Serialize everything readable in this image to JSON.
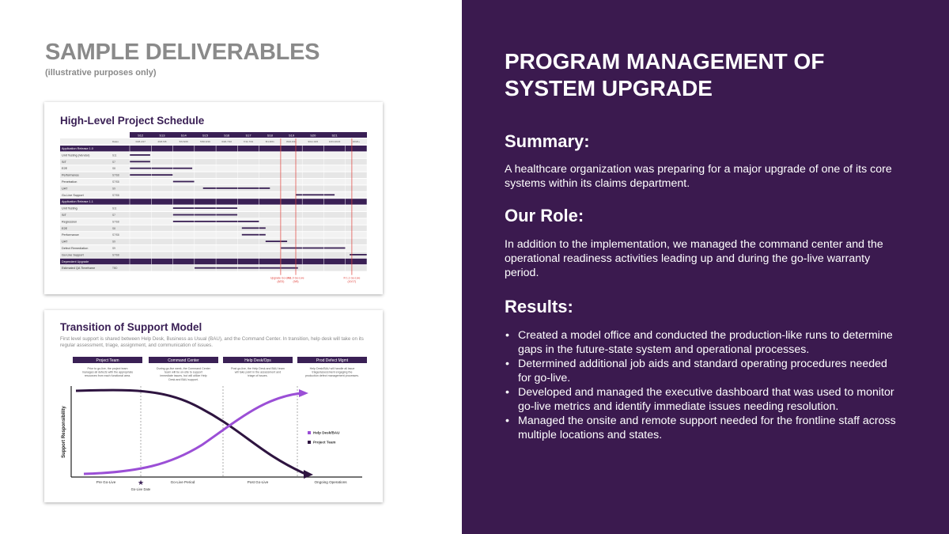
{
  "left": {
    "title": "SAMPLE DELIVERABLES",
    "subtitle": "(illustrative purposes only)",
    "schedule": {
      "title": "High-Level Project Schedule",
      "sprints": [
        "S12",
        "S13",
        "S14",
        "S15",
        "S16",
        "S17",
        "S18",
        "S19",
        "S20",
        "S21",
        ""
      ],
      "dates": [
        "Dates",
        "3/28-4/17",
        "4/18-5/8",
        "5/9-5/29",
        "5/30-6/19",
        "6/20-7/10",
        "7/11-7/31",
        "8/1-8/21",
        "8/22-9/11",
        "9/12-10/2",
        "10/3-10/23",
        "10/24+"
      ],
      "rows": [
        {
          "label": "Application Release 1.0",
          "header": true
        },
        {
          "label": "Unit Testing (Vendor)",
          "code": "S11",
          "bar": [
            0.0,
            0.95
          ]
        },
        {
          "label": "SIT",
          "code": "S7",
          "bar": [
            0.0,
            0.95
          ]
        },
        {
          "label": "E2E",
          "code": "S8",
          "bar": [
            0.0,
            2.9
          ]
        },
        {
          "label": "Performance",
          "code": "S7/S8",
          "bar": [
            0.0,
            2.0
          ]
        },
        {
          "label": "Penetration",
          "code": "S7/S8",
          "bar": [
            2.0,
            3.0
          ]
        },
        {
          "label": "UAT",
          "code": "S9",
          "bar": [
            3.4,
            6.5
          ]
        },
        {
          "label": "Go-Live Support",
          "code": "S7/S8",
          "bar": [
            7.7,
            9.5
          ]
        },
        {
          "label": "Application Release 1.1",
          "header": true
        },
        {
          "label": "Unit Testing",
          "code": "S11",
          "bar": [
            2.0,
            5.0
          ]
        },
        {
          "label": "SIT",
          "code": "S7",
          "bar": [
            2.0,
            5.0
          ]
        },
        {
          "label": "Regression",
          "code": "S7/S8",
          "bar": [
            2.0,
            6.0
          ]
        },
        {
          "label": "E2E",
          "code": "S8",
          "bar": [
            5.2,
            6.3
          ]
        },
        {
          "label": "Performance",
          "code": "S7/S8",
          "bar": [
            5.2,
            6.3
          ]
        },
        {
          "label": "UAT",
          "code": "S9",
          "bar": [
            6.3,
            7.3
          ]
        },
        {
          "label": "Defect Remediation",
          "code": "S9",
          "bar": [
            7.0,
            10.0
          ]
        },
        {
          "label": "Go-Live Support",
          "code": "S7/S8",
          "bar": [
            10.2,
            11.0
          ]
        },
        {
          "label": "Dependent Upgrade",
          "header": true
        },
        {
          "label": "Estimated QA Timeframe",
          "code": "TBD",
          "bar": [
            3.0,
            7.8
          ]
        }
      ],
      "milestones": [
        {
          "label": "Upgrade Go-Live",
          "date": "(8/23)",
          "pos": 7.0
        },
        {
          "label": "R 1.0 Go-Live",
          "date": "(9/8)",
          "pos": 7.7
        },
        {
          "label": "R 1.1 Go-Live",
          "date": "(10/17)",
          "pos": 10.3
        }
      ]
    },
    "transition": {
      "title": "Transition of Support Model",
      "description": "First level support is shared between Help Desk, Business as Usual (BAU), and the Command Center. In transition, help desk will take on its regular assessment, triage, assignment, and communication of issues.",
      "phases": [
        {
          "label": "Project Team",
          "text": "Prior to go-live, the project team manages all defects with the appropriate resources from each functional area."
        },
        {
          "label": "Command Center",
          "text": "During go-live week, the Command Center team will be on-site to support immediate issues, but will utilize Help Desk and BAU support."
        },
        {
          "label": "Help Desk/Ops",
          "text": "Post go-live, the Help Desk and BAU team will take point in the assessment and triage of issues."
        },
        {
          "label": "Prod Defect Mgmt",
          "text": "Help Desk/BAU will handle all issue triage/assessment engaging the production defect management processes."
        }
      ],
      "ylabel": "Support Responsibility",
      "legend": [
        "Help Desk/BAU",
        "Project Team"
      ],
      "xlabels": [
        "Pre Go-Live",
        "Go-Live Period",
        "Post Go-Live",
        "Ongoing Operations"
      ],
      "golive_label": "Go-Live Date",
      "colors": {
        "help_desk": "#9b4fd6",
        "project_team": "#2e1440"
      }
    }
  },
  "right": {
    "title": "PROGRAM MANAGEMENT OF SYSTEM UPGRADE",
    "summary_heading": "Summary:",
    "summary_text": "A healthcare organization was preparing for a major upgrade of one of its core systems within its claims department.",
    "role_heading": "Our Role:",
    "role_text": "In addition to the implementation, we managed the command center and the operational readiness activities leading up and during the go-live warranty period.",
    "results_heading": "Results:",
    "results": [
      "Created a model office and conducted the production-like runs to determine gaps in the future-state system and operational processes.",
      "Determined additional job aids and standard operating procedures needed for go-live.",
      "Developed and managed the executive dashboard that was used to monitor go-live metrics and identify immediate issues needing resolution.",
      "Managed the onsite and remote support needed for the frontline staff across multiple locations and states."
    ]
  },
  "colors": {
    "panel": "#3b1a4f",
    "grey_title": "#8a8a8a",
    "header_bar": "#3a2055",
    "milestone": "#e0403a"
  }
}
